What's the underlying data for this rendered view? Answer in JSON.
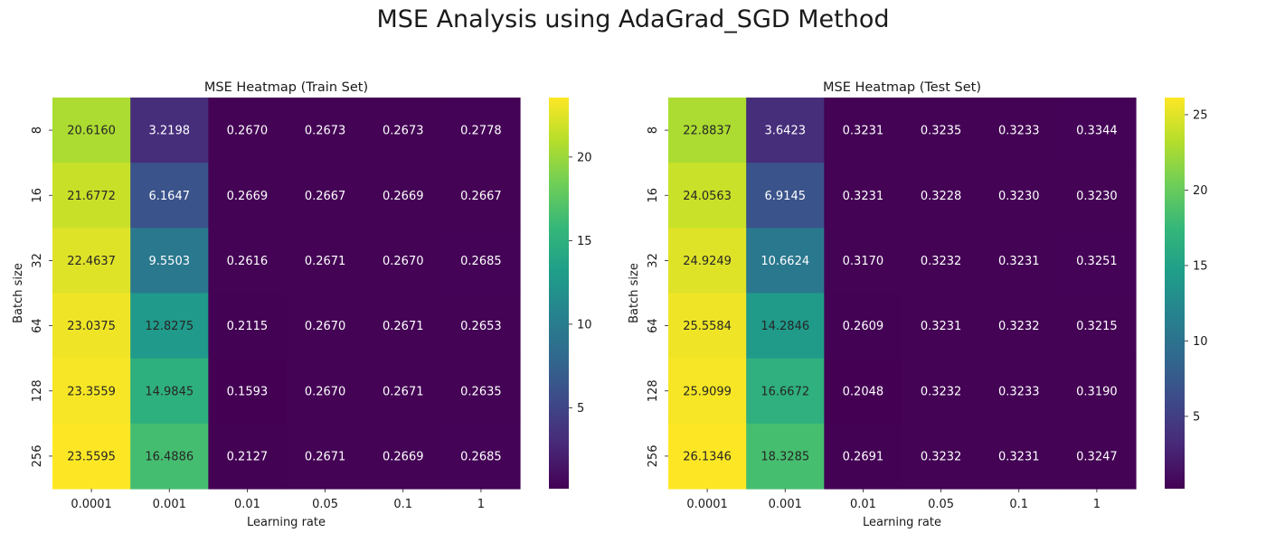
{
  "figure": {
    "suptitle": "MSE Analysis using AdaGrad_SGD Method"
  },
  "colors": {
    "colormap": "viridis",
    "stops": [
      "#440154",
      "#482878",
      "#3e4989",
      "#31688e",
      "#26828e",
      "#1f9e89",
      "#35b779",
      "#6ece58",
      "#b5de2b",
      "#fde725"
    ]
  },
  "chart_data": [
    {
      "type": "heatmap",
      "title": "MSE Heatmap (Train Set)",
      "xlabel": "Learning rate",
      "ylabel": "Batch size",
      "x": [
        "0.0001",
        "0.001",
        "0.01",
        "0.05",
        "0.1",
        "1"
      ],
      "y": [
        "8",
        "16",
        "32",
        "64",
        "128",
        "256"
      ],
      "values": [
        [
          20.616,
          3.2198,
          0.267,
          0.2673,
          0.2673,
          0.2778
        ],
        [
          21.6772,
          6.1647,
          0.2669,
          0.2667,
          0.2669,
          0.2667
        ],
        [
          22.4637,
          9.5503,
          0.2616,
          0.2671,
          0.267,
          0.2685
        ],
        [
          23.0375,
          12.8275,
          0.2115,
          0.267,
          0.2671,
          0.2653
        ],
        [
          23.3559,
          14.9845,
          0.1593,
          0.267,
          0.2671,
          0.2635
        ],
        [
          23.5595,
          16.4886,
          0.2127,
          0.2671,
          0.2669,
          0.2685
        ]
      ],
      "labels": [
        [
          "20.6160",
          "3.2198",
          "0.2670",
          "0.2673",
          "0.2673",
          "0.2778"
        ],
        [
          "21.6772",
          "6.1647",
          "0.2669",
          "0.2667",
          "0.2669",
          "0.2667"
        ],
        [
          "22.4637",
          "9.5503",
          "0.2616",
          "0.2671",
          "0.2670",
          "0.2685"
        ],
        [
          "23.0375",
          "12.8275",
          "0.2115",
          "0.2670",
          "0.2671",
          "0.2653"
        ],
        [
          "23.3559",
          "14.9845",
          "0.1593",
          "0.2670",
          "0.2671",
          "0.2635"
        ],
        [
          "23.5595",
          "16.4886",
          "0.2127",
          "0.2671",
          "0.2669",
          "0.2685"
        ]
      ],
      "colorbar": {
        "min": 0.1593,
        "max": 23.5595,
        "ticks": [
          5,
          10,
          15,
          20
        ]
      }
    },
    {
      "type": "heatmap",
      "title": "MSE Heatmap (Test Set)",
      "xlabel": "Learning rate",
      "ylabel": "Batch size",
      "x": [
        "0.0001",
        "0.001",
        "0.01",
        "0.05",
        "0.1",
        "1"
      ],
      "y": [
        "8",
        "16",
        "32",
        "64",
        "128",
        "256"
      ],
      "values": [
        [
          22.8837,
          3.6423,
          0.3231,
          0.3235,
          0.3233,
          0.3344
        ],
        [
          24.0563,
          6.9145,
          0.3231,
          0.3228,
          0.323,
          0.323
        ],
        [
          24.9249,
          10.6624,
          0.317,
          0.3232,
          0.3231,
          0.3251
        ],
        [
          25.5584,
          14.2846,
          0.2609,
          0.3231,
          0.3232,
          0.3215
        ],
        [
          25.9099,
          16.6672,
          0.2048,
          0.3232,
          0.3233,
          0.319
        ],
        [
          26.1346,
          18.3285,
          0.2691,
          0.3232,
          0.3231,
          0.3247
        ]
      ],
      "labels": [
        [
          "22.8837",
          "3.6423",
          "0.3231",
          "0.3235",
          "0.3233",
          "0.3344"
        ],
        [
          "24.0563",
          "6.9145",
          "0.3231",
          "0.3228",
          "0.3230",
          "0.3230"
        ],
        [
          "24.9249",
          "10.6624",
          "0.3170",
          "0.3232",
          "0.3231",
          "0.3251"
        ],
        [
          "25.5584",
          "14.2846",
          "0.2609",
          "0.3231",
          "0.3232",
          "0.3215"
        ],
        [
          "25.9099",
          "16.6672",
          "0.2048",
          "0.3232",
          "0.3233",
          "0.3190"
        ],
        [
          "26.1346",
          "18.3285",
          "0.2691",
          "0.3232",
          "0.3231",
          "0.3247"
        ]
      ],
      "colorbar": {
        "min": 0.2048,
        "max": 26.1346,
        "ticks": [
          5,
          10,
          15,
          20,
          25
        ]
      }
    }
  ]
}
